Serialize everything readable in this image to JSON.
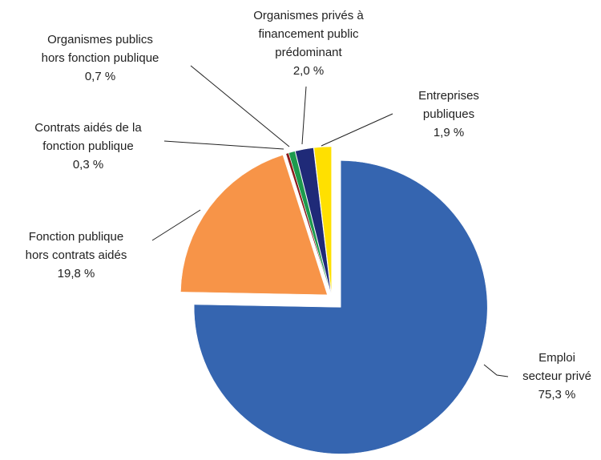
{
  "chart_data": {
    "type": "pie",
    "categories": [
      [
        "Emploi",
        "secteur privé"
      ],
      [
        "Fonction publique",
        "hors contrats aidés"
      ],
      [
        "Contrats aidés de la",
        "fonction publique"
      ],
      [
        "Organismes publics",
        "hors fonction publique"
      ],
      [
        "Organismes privés à",
        "financement public",
        "prédominant"
      ],
      [
        "Entreprises",
        "publiques"
      ]
    ],
    "values": [
      75.3,
      19.8,
      0.3,
      0.7,
      2.0,
      1.9
    ],
    "value_labels": [
      "75,3 %",
      "19,8 %",
      "0,3 %",
      "0,7 %",
      "2,0 %",
      "1,9 %"
    ],
    "colors": [
      "#3565b0",
      "#f79448",
      "#8b1a1a",
      "#1d9a4d",
      "#1f2a78",
      "#ffe000"
    ]
  }
}
